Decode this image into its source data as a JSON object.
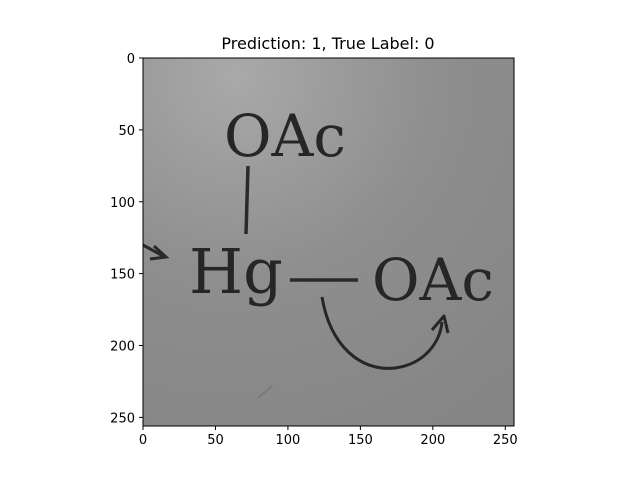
{
  "figure": {
    "title": "Prediction: 1, True Label: 0"
  },
  "image_content": {
    "top_group": "OAc",
    "center_atom": "Hg",
    "right_group": "OAc"
  },
  "axes": {
    "x_ticks": [
      0,
      50,
      100,
      150,
      200,
      250
    ],
    "y_ticks": [
      0,
      50,
      100,
      150,
      200,
      250
    ],
    "xlim": [
      0,
      256
    ],
    "ylim": [
      256,
      0
    ]
  }
}
